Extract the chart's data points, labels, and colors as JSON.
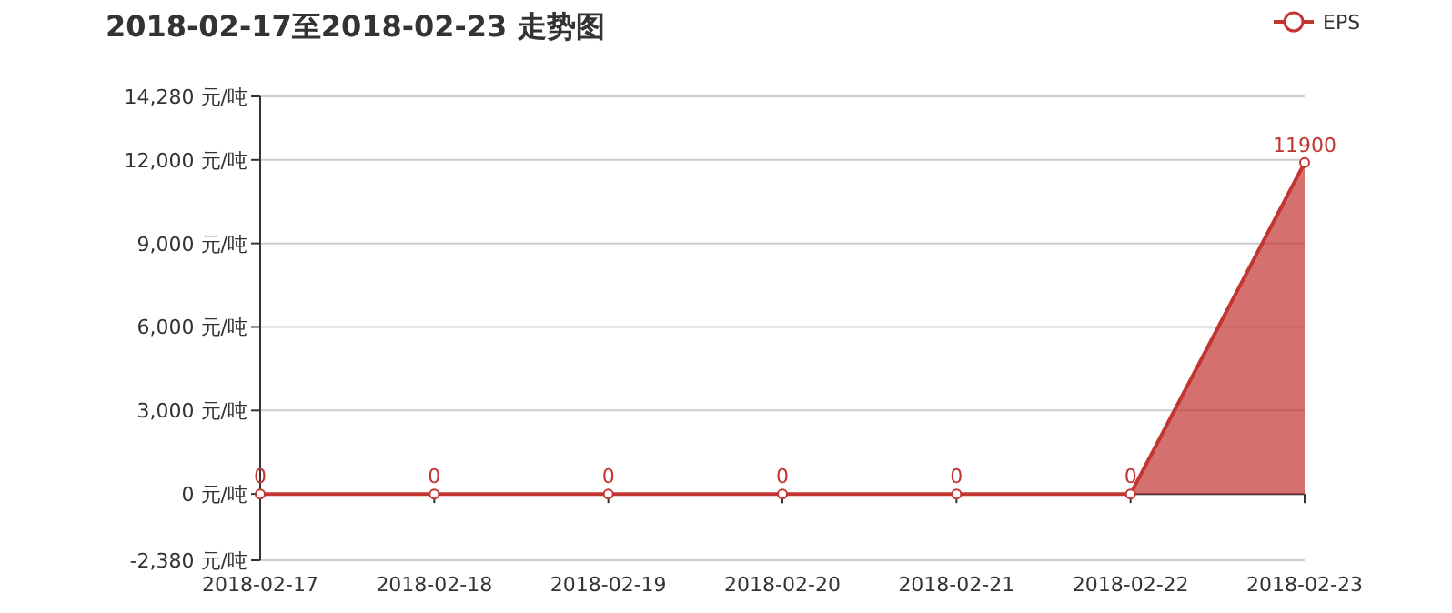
{
  "chart_data": {
    "type": "area",
    "title": "2018-02-17至2018-02-23 走势图",
    "categories": [
      "2018-02-17",
      "2018-02-18",
      "2018-02-19",
      "2018-02-20",
      "2018-02-21",
      "2018-02-22",
      "2018-02-23"
    ],
    "series": [
      {
        "name": "EPS",
        "color": "#c23531",
        "values": [
          0,
          0,
          0,
          0,
          0,
          0,
          11900
        ]
      }
    ],
    "ylim": [
      -2380,
      14280
    ],
    "yticks": [
      {
        "value": -2380,
        "label": "-2,380 元/吨"
      },
      {
        "value": 0,
        "label": "0 元/吨"
      },
      {
        "value": 3000,
        "label": "3,000 元/吨"
      },
      {
        "value": 6000,
        "label": "6,000 元/吨"
      },
      {
        "value": 9000,
        "label": "9,000 元/吨"
      },
      {
        "value": 12000,
        "label": "12,000 元/吨"
      },
      {
        "value": 14280,
        "label": "14,280 元/吨"
      }
    ],
    "grid": "y",
    "legend": "top right",
    "marker": "circle",
    "data_labels": true
  }
}
